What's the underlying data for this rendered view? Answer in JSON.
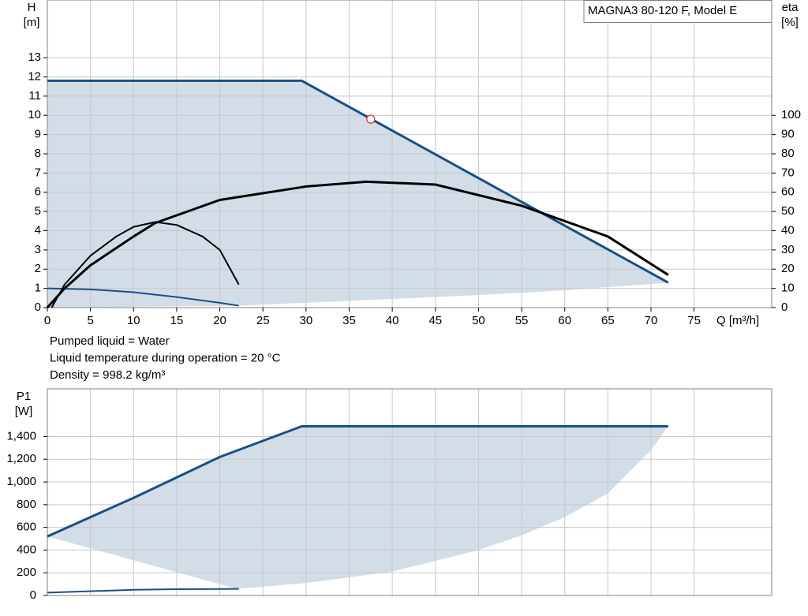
{
  "chart_data": [
    {
      "type": "line",
      "title": "MAGNA3 80-120 F, Model E",
      "ylabel": "H",
      "yunit": "[m]",
      "y2label": "eta",
      "y2unit": "[%]",
      "xlabel": "Q [m³/h]",
      "xlim": [
        0,
        84
      ],
      "xticks": [
        0,
        5,
        10,
        15,
        20,
        25,
        30,
        35,
        40,
        45,
        50,
        55,
        60,
        65,
        70,
        75
      ],
      "ylim": [
        0,
        16
      ],
      "yticks": [
        0,
        1,
        2,
        3,
        4,
        5,
        6,
        7,
        8,
        9,
        10,
        11,
        12,
        13
      ],
      "y2lim": [
        0,
        160
      ],
      "y2ticks": [
        0,
        10,
        20,
        30,
        40,
        50,
        60,
        70,
        80,
        90,
        100
      ],
      "grid": true,
      "band": {
        "color": "#d2dde8",
        "x": [
          72,
          60,
          50,
          40,
          30,
          22,
          0
        ],
        "values": [
          1.3,
          0.9,
          0.65,
          0.45,
          0.25,
          0.1,
          0
        ]
      },
      "series": [
        {
          "color": "#1a4f86",
          "width": 3,
          "x": [
            0,
            29.5,
            72
          ],
          "values": [
            11.8,
            11.8,
            1.3
          ]
        },
        {
          "color": "#1a4f86",
          "width": 2,
          "x": [
            0,
            5,
            10,
            15,
            20,
            22.2
          ],
          "values": [
            1,
            0.95,
            0.8,
            0.55,
            0.25,
            0.1
          ]
        },
        {
          "color": "#000000",
          "width": 3,
          "axis": "y2",
          "x": [
            0,
            2,
            5,
            10,
            12.5,
            20,
            30,
            37,
            45,
            55,
            65,
            72
          ],
          "values": [
            0,
            10,
            22,
            37,
            44,
            56,
            63,
            65.5,
            64,
            53,
            37,
            17
          ]
        },
        {
          "color": "#000000",
          "width": 2,
          "axis": "y2",
          "x": [
            0.5,
            2,
            5,
            8,
            10,
            12.5,
            15,
            18,
            20,
            22.2
          ],
          "values": [
            0,
            12,
            27,
            37,
            42,
            44.5,
            43,
            37,
            30,
            12
          ]
        }
      ],
      "points": [
        {
          "x": 37.5,
          "value": 9.8,
          "color": "#e03030"
        }
      ],
      "annotations": [
        "Pumped liquid = Water",
        "Liquid temperature during operation = 20 °C",
        "Density = 998.2 kg/m³"
      ]
    },
    {
      "type": "line",
      "ylabel": "P1",
      "yunit": "[W]",
      "ylim": [
        0,
        1820
      ],
      "yticks": [
        0,
        200,
        400,
        600,
        800,
        {
          "value": 1000,
          "label": "1,000"
        },
        {
          "value": 1200,
          "label": "1,200"
        },
        {
          "value": 1400,
          "label": "1,400"
        }
      ],
      "grid": true,
      "band": {
        "color": "#d2dde8",
        "x": [
          72,
          70,
          65,
          60,
          55,
          50,
          40,
          30,
          22
        ],
        "values": [
          1490,
          1280,
          900,
          690,
          530,
          400,
          210,
          110,
          58
        ]
      },
      "series": [
        {
          "color": "#1a4f86",
          "width": 3,
          "x": [
            0,
            10,
            20,
            29.5,
            72
          ],
          "values": [
            520,
            860,
            1220,
            1490,
            1490
          ]
        },
        {
          "color": "#1a4f86",
          "width": 2,
          "x": [
            0,
            10,
            15,
            22.2
          ],
          "values": [
            25,
            50,
            56,
            58
          ]
        }
      ]
    }
  ]
}
